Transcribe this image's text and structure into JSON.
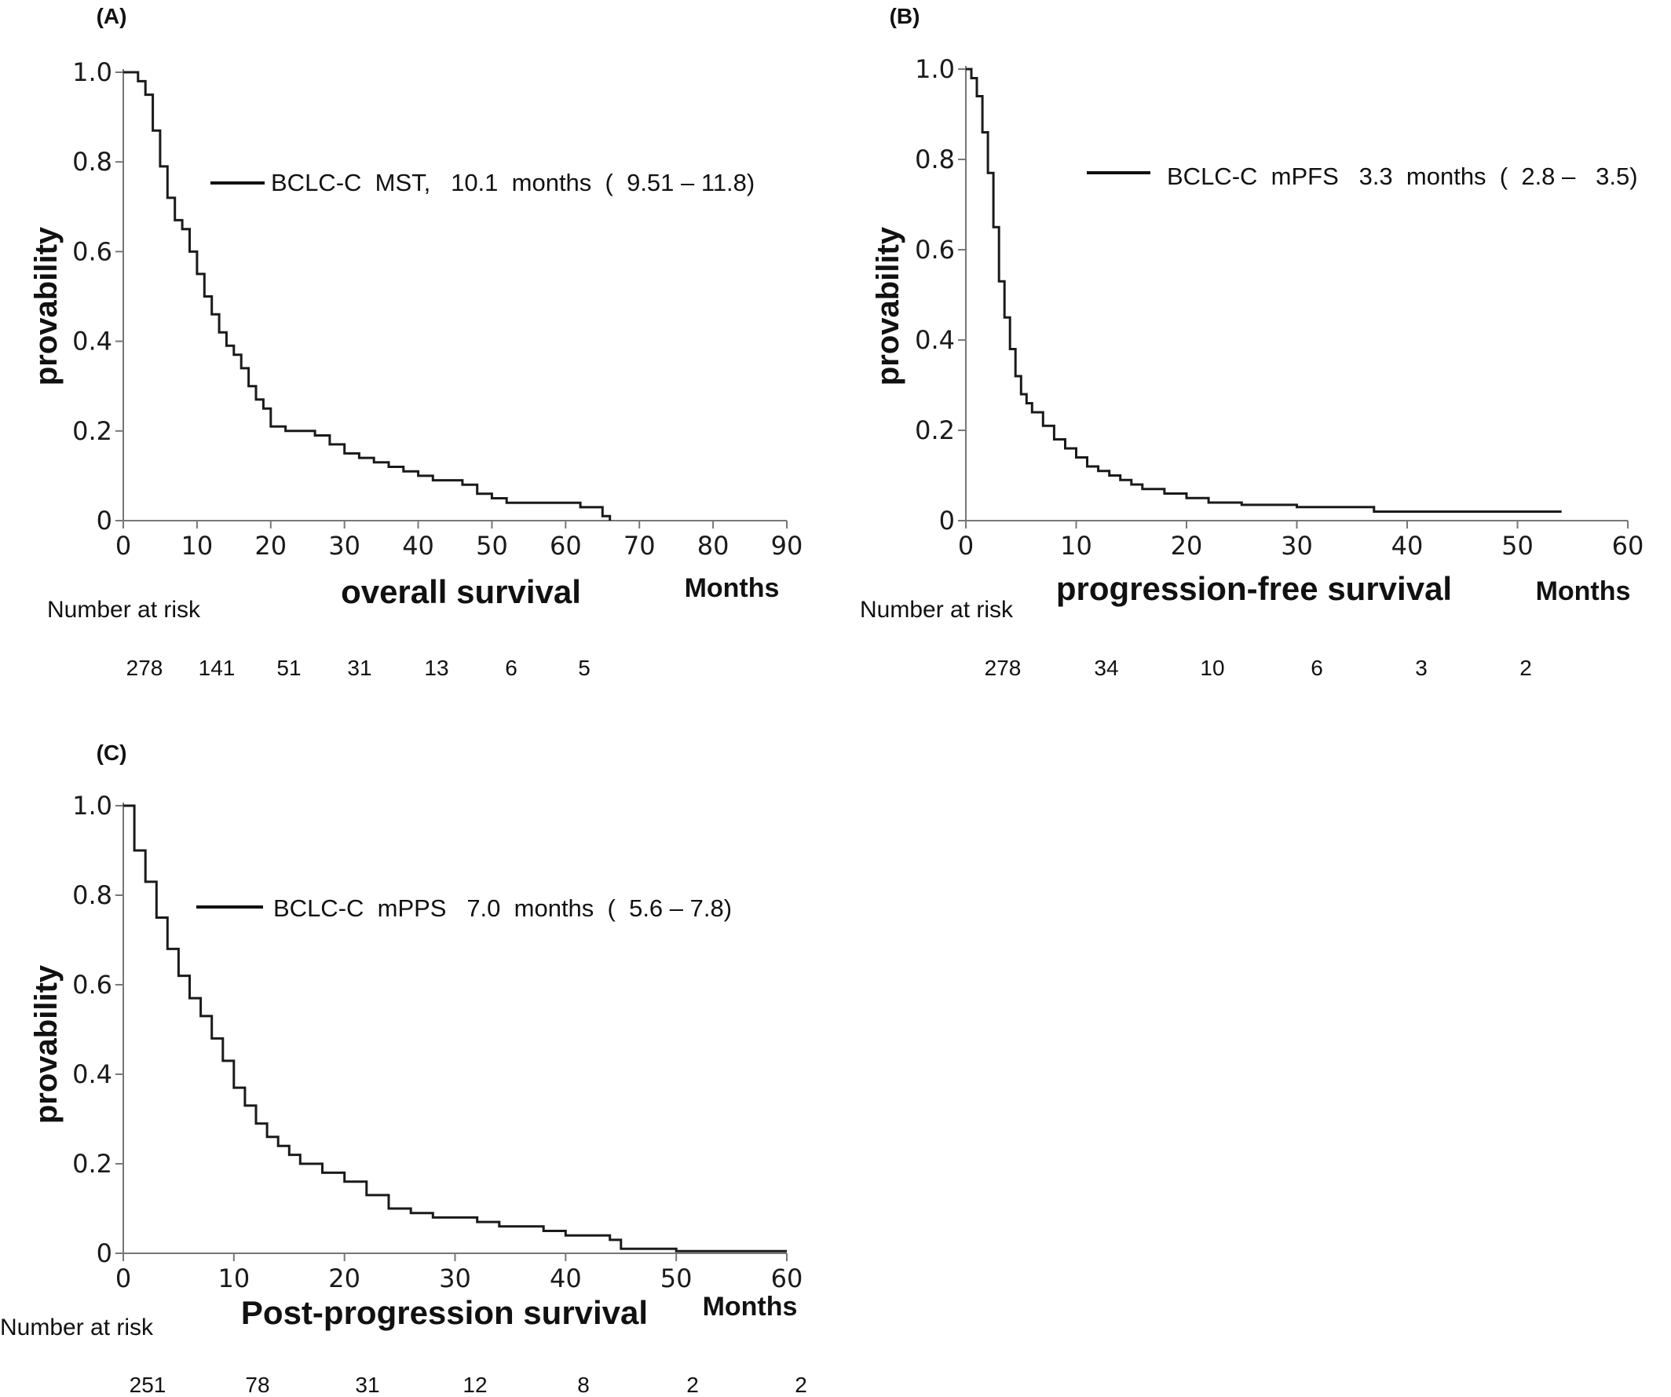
{
  "chart_data": [
    {
      "type": "line",
      "panel_label": "(A)",
      "title": "overall survival",
      "xlabel": "Months",
      "ylabel": "provability",
      "xlim": [
        0,
        90
      ],
      "ylim": [
        0,
        1.0
      ],
      "xticks": [
        0,
        10,
        20,
        30,
        40,
        50,
        60,
        70,
        80,
        90
      ],
      "xtick_labels": [
        "0",
        "10",
        "20",
        "30",
        "40",
        "50",
        "60",
        "70",
        "80",
        "90"
      ],
      "yticks": [
        0,
        0.2,
        0.4,
        0.6,
        0.8,
        1.0
      ],
      "ytick_labels": [
        "0",
        "0.2",
        "0.4",
        "0.6",
        "0.8",
        "1.0"
      ],
      "legend": {
        "text": "BCLC-C  MST,   10.1  months  (  9.51 – 11.8)",
        "position": "upper-right"
      },
      "risk_table": {
        "label": "Number at risk",
        "x": [
          0,
          10,
          20,
          30,
          40,
          50,
          60
        ],
        "values": [
          "278",
          "141",
          "51",
          "31",
          "13",
          "6",
          "5"
        ]
      },
      "series": [
        {
          "name": "BCLC-C  MST",
          "x": [
            0,
            1,
            2,
            3,
            4,
            5,
            6,
            7,
            8,
            9,
            10,
            11,
            12,
            13,
            14,
            15,
            16,
            17,
            18,
            19,
            20,
            22,
            24,
            26,
            28,
            30,
            32,
            34,
            36,
            38,
            40,
            42,
            44,
            46,
            48,
            50,
            52,
            54,
            56,
            58,
            60,
            62,
            64,
            65,
            66
          ],
          "y": [
            1.0,
            1.0,
            0.98,
            0.95,
            0.87,
            0.79,
            0.72,
            0.67,
            0.65,
            0.6,
            0.55,
            0.5,
            0.46,
            0.42,
            0.39,
            0.37,
            0.34,
            0.3,
            0.27,
            0.25,
            0.21,
            0.2,
            0.2,
            0.19,
            0.17,
            0.15,
            0.14,
            0.13,
            0.12,
            0.11,
            0.1,
            0.09,
            0.09,
            0.08,
            0.06,
            0.05,
            0.04,
            0.04,
            0.04,
            0.04,
            0.04,
            0.03,
            0.03,
            0.01,
            0.0
          ]
        }
      ]
    },
    {
      "type": "line",
      "panel_label": "(B)",
      "title": "progression-free survival",
      "xlabel": "Months",
      "ylabel": "provability",
      "xlim": [
        0,
        60
      ],
      "ylim": [
        0,
        1.0
      ],
      "xticks": [
        0,
        10,
        20,
        30,
        40,
        50,
        60
      ],
      "xtick_labels": [
        "0",
        "10",
        "20",
        "30",
        "40",
        "50",
        "60"
      ],
      "yticks": [
        0,
        0.2,
        0.4,
        0.6,
        0.8,
        1.0
      ],
      "ytick_labels": [
        "0",
        "0.2",
        "0.4",
        "0.6",
        "0.8",
        "1.0"
      ],
      "legend": {
        "text": "BCLC-C  mPFS   3.3  months  (  2.8 –   3.5)",
        "position": "upper-right"
      },
      "risk_table": {
        "label": "Number at risk",
        "x": [
          3,
          13,
          23,
          32,
          42,
          51
        ],
        "values": [
          "278",
          "34",
          "10",
          "6",
          "3",
          "2"
        ]
      },
      "series": [
        {
          "name": "BCLC-C  mPFS",
          "x": [
            0,
            0.5,
            1,
            1.5,
            2,
            2.5,
            3,
            3.5,
            4,
            4.5,
            5,
            5.5,
            6,
            7,
            8,
            9,
            10,
            11,
            12,
            13,
            14,
            15,
            16,
            18,
            20,
            22,
            25,
            30,
            35,
            37,
            40,
            45,
            50,
            54
          ],
          "y": [
            1.0,
            0.98,
            0.94,
            0.86,
            0.77,
            0.65,
            0.53,
            0.45,
            0.38,
            0.32,
            0.28,
            0.26,
            0.24,
            0.21,
            0.18,
            0.16,
            0.14,
            0.12,
            0.11,
            0.1,
            0.09,
            0.08,
            0.07,
            0.06,
            0.05,
            0.04,
            0.035,
            0.03,
            0.03,
            0.02,
            0.02,
            0.02,
            0.02,
            0.02
          ]
        }
      ]
    },
    {
      "type": "line",
      "panel_label": "(C)",
      "title": "Post-progression survival",
      "xlabel": "Months",
      "ylabel": "provability",
      "xlim": [
        0,
        60
      ],
      "ylim": [
        0,
        1.0
      ],
      "xticks": [
        0,
        10,
        20,
        30,
        40,
        50,
        60
      ],
      "xtick_labels": [
        "0",
        "10",
        "20",
        "30",
        "40",
        "50",
        "60"
      ],
      "yticks": [
        0,
        0.2,
        0.4,
        0.6,
        0.8,
        1.0
      ],
      "ytick_labels": [
        "0",
        "0.2",
        "0.4",
        "0.6",
        "0.8",
        "1.0"
      ],
      "legend": {
        "text": "BCLC-C  mPPS   7.0  months  (  5.6 – 7.8)",
        "position": "upper-right"
      },
      "risk_table": {
        "label": "Number at risk",
        "x": [
          2,
          12,
          22,
          32,
          42,
          51,
          61
        ],
        "values": [
          "251",
          "78",
          "31",
          "12",
          "8",
          "2",
          "2"
        ]
      },
      "series": [
        {
          "name": "BCLC-C  mPPS",
          "x": [
            0,
            1,
            2,
            3,
            4,
            5,
            6,
            7,
            8,
            9,
            10,
            11,
            12,
            13,
            14,
            15,
            16,
            18,
            20,
            22,
            24,
            26,
            28,
            30,
            32,
            34,
            36,
            38,
            40,
            42,
            44,
            45,
            46,
            48,
            50,
            52,
            55,
            60
          ],
          "y": [
            1.0,
            0.9,
            0.83,
            0.75,
            0.68,
            0.62,
            0.57,
            0.53,
            0.48,
            0.43,
            0.37,
            0.33,
            0.29,
            0.26,
            0.24,
            0.22,
            0.2,
            0.18,
            0.16,
            0.13,
            0.1,
            0.09,
            0.08,
            0.08,
            0.07,
            0.06,
            0.06,
            0.05,
            0.04,
            0.04,
            0.03,
            0.01,
            0.01,
            0.01,
            0.005,
            0.005,
            0.005,
            0.005
          ]
        }
      ]
    }
  ]
}
